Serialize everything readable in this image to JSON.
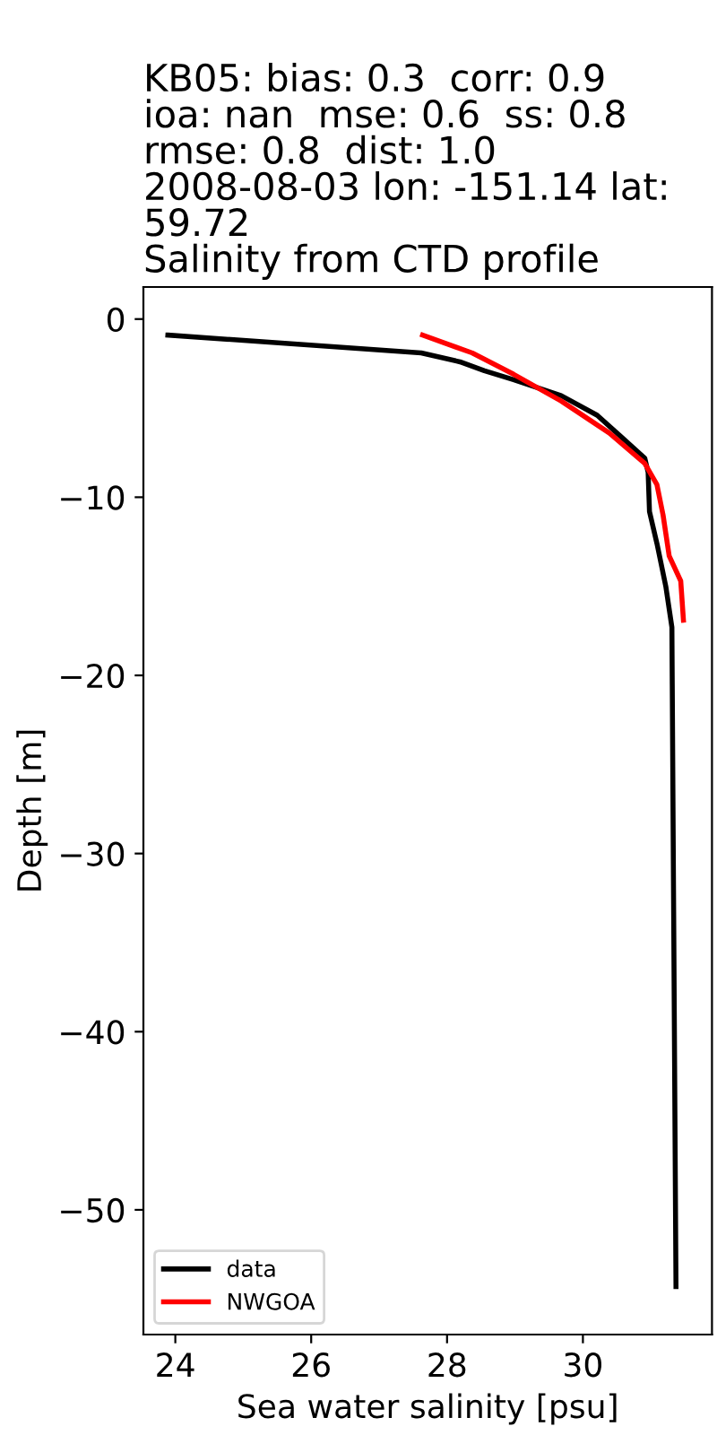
{
  "chart_data": {
    "type": "line",
    "title": "KB05: bias: 0.3  corr: 0.9\nioa: nan  mse: 0.6  ss: 0.8\nrmse: 0.8  dist: 1.0\n2008-08-03 lon: -151.14 lat:\n59.72\nSalinity from CTD profile",
    "xlabel": "Sea water salinity [psu]",
    "ylabel": "Depth [m]",
    "series": [
      {
        "name": "data",
        "color": "#000000",
        "x": [
          23.89,
          27.62,
          28.19,
          28.55,
          28.98,
          29.68,
          30.21,
          30.56,
          30.91,
          30.96,
          30.98,
          31.09,
          31.22,
          31.31,
          31.37
        ],
        "values": [
          -0.9,
          -1.9,
          -2.4,
          -2.9,
          -3.4,
          -4.3,
          -5.4,
          -6.6,
          -7.8,
          -8.6,
          -10.8,
          -12.6,
          -15.0,
          -17.3,
          -54.3
        ]
      },
      {
        "name": "NWGOA",
        "color": "#ff0000",
        "x": [
          27.64,
          28.37,
          28.98,
          29.68,
          30.39,
          30.91,
          31.09,
          31.18,
          31.27,
          31.44,
          31.48
        ],
        "values": [
          -0.9,
          -1.9,
          -3.1,
          -4.6,
          -6.4,
          -8.1,
          -9.3,
          -11.0,
          -13.3,
          -14.7,
          -16.9
        ]
      }
    ],
    "xlim": [
      23.53,
      31.9
    ],
    "xticks": [
      24,
      26,
      28,
      30
    ],
    "ylim": [
      -57.0,
      1.8
    ],
    "yticks": [
      {
        "value": 0,
        "label": "0"
      },
      {
        "value": -10,
        "label": "−10"
      },
      {
        "value": -20,
        "label": "−20"
      },
      {
        "value": -30,
        "label": "−30"
      },
      {
        "value": -40,
        "label": "−40"
      },
      {
        "value": -50,
        "label": "−50"
      }
    ],
    "legend": "lower left",
    "grid": false,
    "marker": "none",
    "line_style": "solid"
  }
}
